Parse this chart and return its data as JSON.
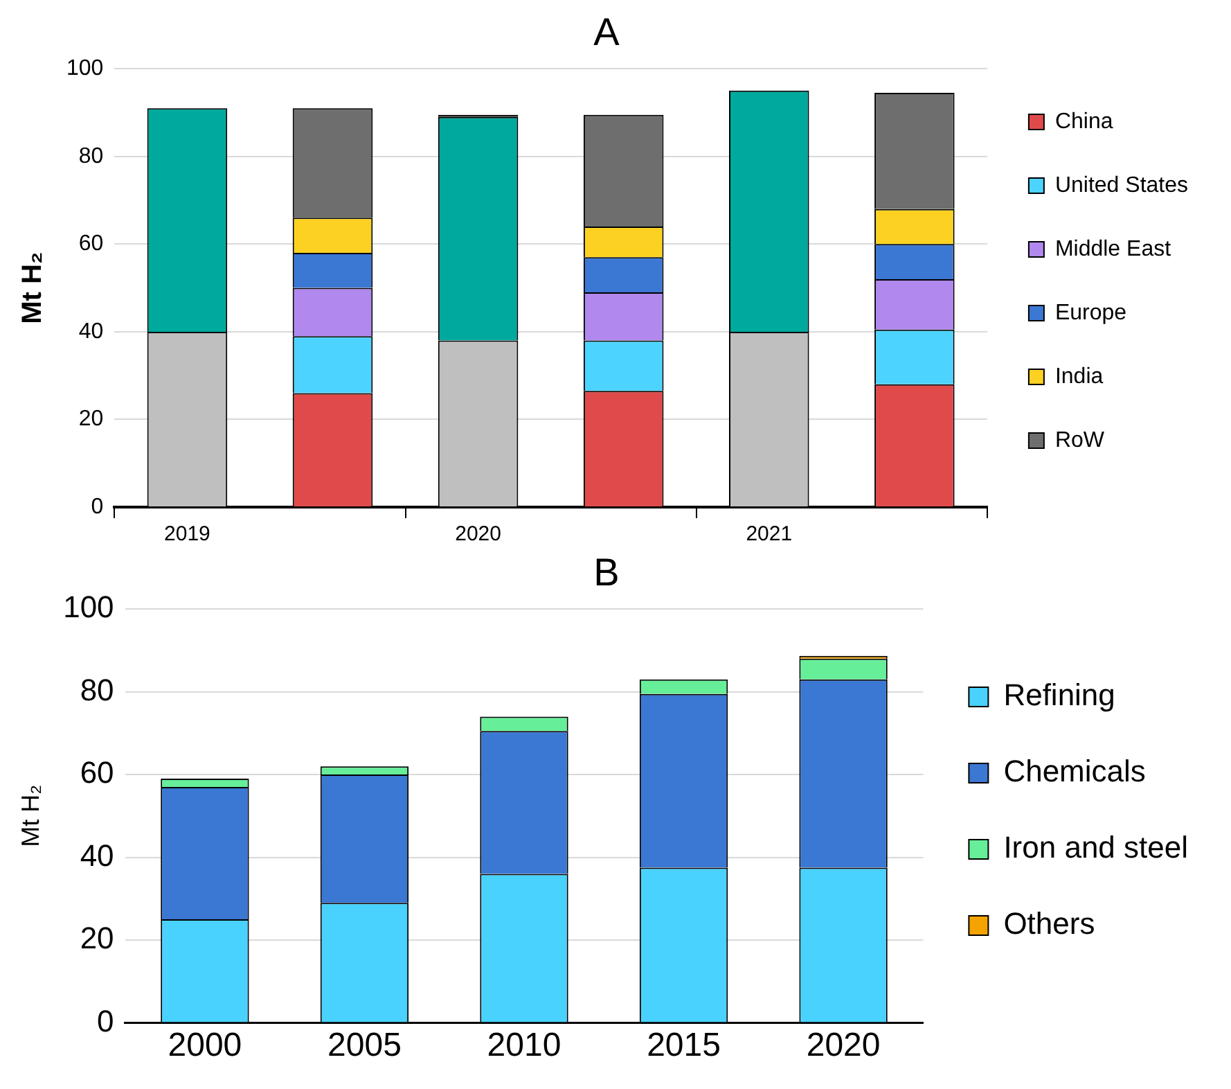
{
  "chart_data": [
    {
      "type": "bar",
      "title": "A",
      "ylabel": "Mt H₂",
      "categories": [
        "2019",
        null,
        "2020",
        null,
        "2021",
        null
      ],
      "stacked": true,
      "ylim": [
        0,
        100
      ],
      "yticks": [
        0,
        20,
        40,
        60,
        80,
        100
      ],
      "grid": "y",
      "legend": "right",
      "series": [
        {
          "color": "#bfbfbf",
          "values": [
            40,
            null,
            38,
            null,
            40,
            null
          ]
        },
        {
          "color": "#00a99d",
          "values": [
            51,
            null,
            51,
            null,
            55,
            null
          ]
        },
        {
          "color": "#000000",
          "values": [
            null,
            null,
            0.5,
            null,
            null,
            null
          ]
        },
        {
          "name": "China",
          "color": "#e04a4a",
          "values": [
            null,
            26,
            null,
            26.5,
            null,
            28
          ]
        },
        {
          "name": "United States",
          "color": "#4dd3ff",
          "values": [
            null,
            13,
            null,
            11.5,
            null,
            12.5
          ]
        },
        {
          "name": "Middle East",
          "color": "#b088ee",
          "values": [
            null,
            11,
            null,
            11,
            null,
            11.5
          ]
        },
        {
          "name": "Europe",
          "color": "#3b78d4",
          "values": [
            null,
            8,
            null,
            8,
            null,
            8
          ]
        },
        {
          "name": "India",
          "color": "#fcd121",
          "values": [
            null,
            8,
            null,
            7,
            null,
            8
          ]
        },
        {
          "name": "RoW",
          "color": "#6d6e6d",
          "values": [
            null,
            25,
            null,
            25.5,
            null,
            26.5
          ]
        }
      ]
    },
    {
      "type": "bar",
      "title": "B",
      "ylabel": "Mt H₂",
      "categories": [
        "2000",
        "2005",
        "2010",
        "2015",
        "2020"
      ],
      "stacked": true,
      "ylim": [
        0,
        100
      ],
      "yticks": [
        0,
        20,
        40,
        60,
        80,
        100
      ],
      "grid": "y",
      "legend": "right",
      "series": [
        {
          "name": "Refining",
          "color": "#48d2fd",
          "values": [
            25,
            29,
            36,
            37.5,
            37.5
          ]
        },
        {
          "name": "Chemicals",
          "color": "#3b78d4",
          "values": [
            32,
            31,
            34.5,
            42,
            45.5
          ]
        },
        {
          "name": "Iron and steel",
          "color": "#66ee99",
          "values": [
            2,
            2,
            3.5,
            3.5,
            5
          ]
        },
        {
          "name": "Others",
          "color": "#f5a300",
          "values": [
            null,
            null,
            null,
            null,
            0.7
          ]
        }
      ]
    }
  ]
}
